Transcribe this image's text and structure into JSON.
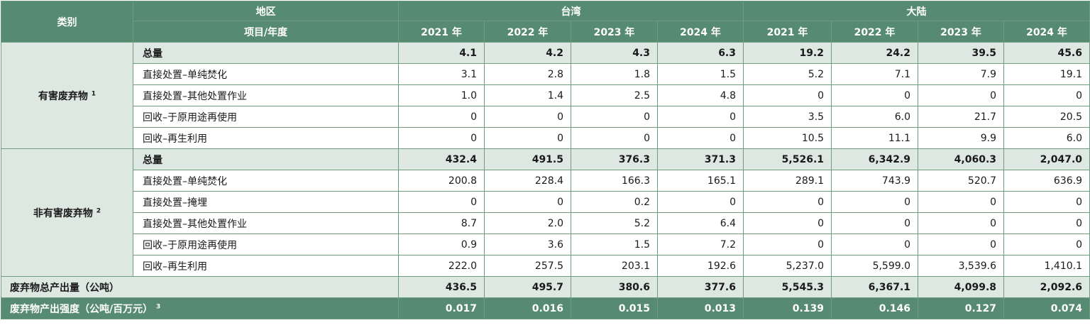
{
  "header": {
    "category": "类别",
    "region": "地区",
    "item_year": "项目/年度",
    "taiwan": "台湾",
    "mainland": "大陆",
    "years": [
      "2021 年",
      "2022 年",
      "2023 年",
      "2024 年",
      "2021 年",
      "2022 年",
      "2023 年",
      "2024 年"
    ]
  },
  "groups": [
    {
      "name": "有害废弃物",
      "note": "1",
      "rows": [
        {
          "label": "总量",
          "total": true,
          "values": [
            "4.1",
            "4.2",
            "4.3",
            "6.3",
            "19.2",
            "24.2",
            "39.5",
            "45.6"
          ]
        },
        {
          "label": "直接处置–单纯焚化",
          "values": [
            "3.1",
            "2.8",
            "1.8",
            "1.5",
            "5.2",
            "7.1",
            "7.9",
            "19.1"
          ]
        },
        {
          "label": "直接处置–其他处置作业",
          "values": [
            "1.0",
            "1.4",
            "2.5",
            "4.8",
            "0",
            "0",
            "0",
            "0"
          ]
        },
        {
          "label": "回收–于原用途再使用",
          "values": [
            "0",
            "0",
            "0",
            "0",
            "3.5",
            "6.0",
            "21.7",
            "20.5"
          ]
        },
        {
          "label": "回收–再生利用",
          "values": [
            "0",
            "0",
            "0",
            "0",
            "10.5",
            "11.1",
            "9.9",
            "6.0"
          ]
        }
      ]
    },
    {
      "name": "非有害废弃物",
      "note": "2",
      "rows": [
        {
          "label": "总量",
          "total": true,
          "values": [
            "432.4",
            "491.5",
            "376.3",
            "371.3",
            "5,526.1",
            "6,342.9",
            "4,060.3",
            "2,047.0"
          ]
        },
        {
          "label": "直接处置–单纯焚化",
          "values": [
            "200.8",
            "228.4",
            "166.3",
            "165.1",
            "289.1",
            "743.9",
            "520.7",
            "636.9"
          ]
        },
        {
          "label": "直接处置–掩埋",
          "values": [
            "0",
            "0",
            "0.2",
            "0",
            "0",
            "0",
            "0",
            "0"
          ]
        },
        {
          "label": "直接处置–其他处置作业",
          "values": [
            "8.7",
            "2.0",
            "5.2",
            "6.4",
            "0",
            "0",
            "0",
            "0"
          ]
        },
        {
          "label": "回收–于原用途再使用",
          "values": [
            "0.9",
            "3.6",
            "1.5",
            "7.2",
            "0",
            "0",
            "0",
            "0"
          ]
        },
        {
          "label": "回收–再生利用",
          "values": [
            "222.0",
            "257.5",
            "203.1",
            "192.6",
            "5,237.0",
            "5,599.0",
            "3,539.6",
            "1,410.1"
          ]
        }
      ]
    }
  ],
  "grand_total": {
    "label": "废弃物总产出量（公吨）",
    "values": [
      "436.5",
      "495.7",
      "380.6",
      "377.6",
      "5,545.3",
      "6,367.1",
      "4,099.8",
      "2,092.6"
    ]
  },
  "intensity": {
    "label": "废弃物产出强度（公吨/百万元）",
    "note": "3",
    "values": [
      "0.017",
      "0.016",
      "0.015",
      "0.013",
      "0.139",
      "0.146",
      "0.127",
      "0.074"
    ]
  }
}
